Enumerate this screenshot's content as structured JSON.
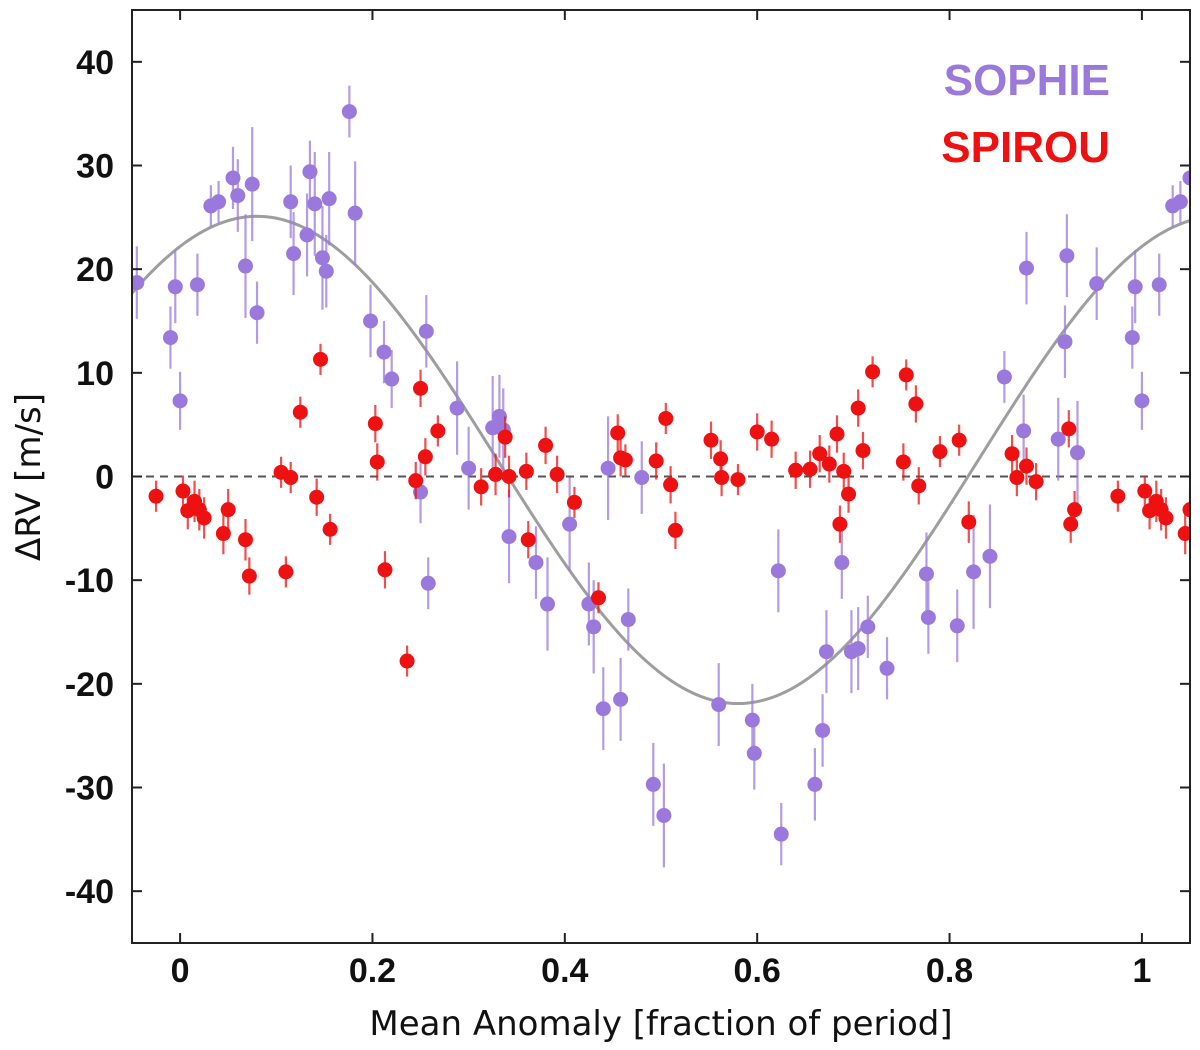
{
  "chart_data": {
    "type": "scatter",
    "title": "",
    "xlabel": "Mean Anomaly [fraction of period]",
    "ylabel": "ΔRV [m/s]",
    "xlim": [
      -0.05,
      1.05
    ],
    "ylim": [
      -45,
      45
    ],
    "xticks": [
      0,
      0.2,
      0.4,
      0.6,
      0.8,
      1
    ],
    "xtick_labels": [
      "0",
      "0.2",
      "0.4",
      "0.6",
      "0.8",
      "1"
    ],
    "yticks": [
      40,
      30,
      20,
      10,
      0,
      -10,
      -20,
      -30,
      -40
    ],
    "ytick_labels": [
      "40",
      "30",
      "20",
      "10",
      "0",
      "-10",
      "-20",
      "-30",
      "-40"
    ],
    "reference_line": {
      "y": 0,
      "style": "dashed"
    },
    "model": {
      "name": "Keplerian fit",
      "type": "sine",
      "offset": 1.6,
      "amplitude": 23.5,
      "phase_of_max": 0.08,
      "color": "#9e9e9e"
    },
    "legend": {
      "position": "top-right"
    },
    "series": [
      {
        "name": "SOPHIE",
        "color": "#9b79dc",
        "points": [
          {
            "x": -0.045,
            "y": 18.7,
            "err": 3.5
          },
          {
            "x": -0.01,
            "y": 13.4,
            "err": 3.0
          },
          {
            "x": -0.005,
            "y": 18.3,
            "err": 3.5
          },
          {
            "x": 0.0,
            "y": 7.3,
            "err": 2.8
          },
          {
            "x": 0.018,
            "y": 18.5,
            "err": 3.0
          },
          {
            "x": 0.032,
            "y": 26.1,
            "err": 2.0
          },
          {
            "x": 0.04,
            "y": 26.5,
            "err": 2.0
          },
          {
            "x": 0.055,
            "y": 28.8,
            "err": 3.0
          },
          {
            "x": 0.06,
            "y": 27.1,
            "err": 3.5
          },
          {
            "x": 0.068,
            "y": 20.3,
            "err": 5.0
          },
          {
            "x": 0.075,
            "y": 28.2,
            "err": 5.5
          },
          {
            "x": 0.08,
            "y": 15.8,
            "err": 3.0
          },
          {
            "x": 0.115,
            "y": 26.5,
            "err": 3.5
          },
          {
            "x": 0.118,
            "y": 21.5,
            "err": 4.0
          },
          {
            "x": 0.132,
            "y": 23.3,
            "err": 4.0
          },
          {
            "x": 0.135,
            "y": 29.4,
            "err": 3.0
          },
          {
            "x": 0.14,
            "y": 26.3,
            "err": 5.0
          },
          {
            "x": 0.148,
            "y": 21.1,
            "err": 5.0
          },
          {
            "x": 0.152,
            "y": 19.8,
            "err": 3.5
          },
          {
            "x": 0.155,
            "y": 26.8,
            "err": 4.5
          },
          {
            "x": 0.176,
            "y": 35.2,
            "err": 2.5
          },
          {
            "x": 0.182,
            "y": 25.4,
            "err": 5.0
          },
          {
            "x": 0.198,
            "y": 15.0,
            "err": 3.5
          },
          {
            "x": 0.212,
            "y": 12.0,
            "err": 3.0
          },
          {
            "x": 0.22,
            "y": 9.4,
            "err": 2.8
          },
          {
            "x": 0.25,
            "y": -1.5,
            "err": 3.0
          },
          {
            "x": 0.256,
            "y": 14.0,
            "err": 3.5
          },
          {
            "x": 0.258,
            "y": -10.3,
            "err": 2.5
          },
          {
            "x": 0.288,
            "y": 6.6,
            "err": 4.5
          },
          {
            "x": 0.3,
            "y": 0.8,
            "err": 4.0
          },
          {
            "x": 0.325,
            "y": 4.7,
            "err": 5.0
          },
          {
            "x": 0.332,
            "y": 5.8,
            "err": 4.0
          },
          {
            "x": 0.336,
            "y": 4.5,
            "err": 4.0
          },
          {
            "x": 0.342,
            "y": -5.8,
            "err": 4.5
          },
          {
            "x": 0.37,
            "y": -8.3,
            "err": 3.5
          },
          {
            "x": 0.382,
            "y": -12.3,
            "err": 4.5
          },
          {
            "x": 0.405,
            "y": -4.6,
            "err": 4.5
          },
          {
            "x": 0.425,
            "y": -12.3,
            "err": 4.0
          },
          {
            "x": 0.43,
            "y": -14.5,
            "err": 4.5
          },
          {
            "x": 0.44,
            "y": -22.4,
            "err": 4.0
          },
          {
            "x": 0.445,
            "y": 0.8,
            "err": 5.0
          },
          {
            "x": 0.458,
            "y": -21.5,
            "err": 4.0
          },
          {
            "x": 0.466,
            "y": -13.8,
            "err": 3.0
          },
          {
            "x": 0.48,
            "y": -0.1,
            "err": 3.5
          },
          {
            "x": 0.492,
            "y": -29.7,
            "err": 4.0
          },
          {
            "x": 0.503,
            "y": -32.7,
            "err": 5.0
          },
          {
            "x": 0.56,
            "y": -22.0,
            "err": 4.0
          },
          {
            "x": 0.595,
            "y": -23.5,
            "err": 3.5
          },
          {
            "x": 0.597,
            "y": -26.7,
            "err": 3.5
          },
          {
            "x": 0.622,
            "y": -9.1,
            "err": 4.0
          },
          {
            "x": 0.625,
            "y": -34.5,
            "err": 3.0
          },
          {
            "x": 0.66,
            "y": -29.7,
            "err": 3.5
          },
          {
            "x": 0.668,
            "y": -24.5,
            "err": 3.5
          },
          {
            "x": 0.672,
            "y": -16.9,
            "err": 4.0
          },
          {
            "x": 0.688,
            "y": -8.3,
            "err": 3.5
          },
          {
            "x": 0.698,
            "y": -16.9,
            "err": 4.0
          },
          {
            "x": 0.705,
            "y": -16.6,
            "err": 4.0
          },
          {
            "x": 0.715,
            "y": -14.5,
            "err": 3.0
          },
          {
            "x": 0.735,
            "y": -18.5,
            "err": 3.0
          },
          {
            "x": 0.776,
            "y": -9.4,
            "err": 4.0
          },
          {
            "x": 0.778,
            "y": -13.6,
            "err": 3.5
          },
          {
            "x": 0.808,
            "y": -14.4,
            "err": 3.5
          },
          {
            "x": 0.825,
            "y": -9.2,
            "err": 5.5
          },
          {
            "x": 0.842,
            "y": -7.7,
            "err": 5.0
          },
          {
            "x": 0.857,
            "y": 9.6,
            "err": 2.5
          },
          {
            "x": 0.877,
            "y": 4.4,
            "err": 3.5
          },
          {
            "x": 0.88,
            "y": 20.1,
            "err": 3.5
          },
          {
            "x": 0.913,
            "y": 3.6,
            "err": 4.0
          },
          {
            "x": 0.92,
            "y": 13.0,
            "err": 3.5
          },
          {
            "x": 0.922,
            "y": 21.3,
            "err": 4.0
          },
          {
            "x": 0.933,
            "y": 2.3,
            "err": 5.0
          },
          {
            "x": 0.953,
            "y": 18.6,
            "err": 3.5
          },
          {
            "x": 0.99,
            "y": 13.4,
            "err": 3.0
          },
          {
            "x": 0.993,
            "y": 18.3,
            "err": 3.5
          },
          {
            "x": 1.0,
            "y": 7.3,
            "err": 2.8
          },
          {
            "x": 1.018,
            "y": 18.5,
            "err": 3.0
          },
          {
            "x": 1.032,
            "y": 26.1,
            "err": 2.0
          },
          {
            "x": 1.04,
            "y": 26.5,
            "err": 2.0
          },
          {
            "x": 1.05,
            "y": 28.8,
            "err": 3.0
          }
        ]
      },
      {
        "name": "SPIROU",
        "color": "#ee1111",
        "points": [
          {
            "x": -0.025,
            "y": -1.9,
            "err": 1.5
          },
          {
            "x": 0.003,
            "y": -1.4,
            "err": 1.5
          },
          {
            "x": 0.008,
            "y": -3.3,
            "err": 1.8
          },
          {
            "x": 0.015,
            "y": -2.4,
            "err": 2.0
          },
          {
            "x": 0.02,
            "y": -3.2,
            "err": 2.0
          },
          {
            "x": 0.025,
            "y": -4.0,
            "err": 2.0
          },
          {
            "x": 0.045,
            "y": -5.5,
            "err": 2.0
          },
          {
            "x": 0.05,
            "y": -3.2,
            "err": 2.0
          },
          {
            "x": 0.068,
            "y": -6.1,
            "err": 2.0
          },
          {
            "x": 0.072,
            "y": -9.6,
            "err": 1.8
          },
          {
            "x": 0.105,
            "y": 0.4,
            "err": 1.5
          },
          {
            "x": 0.11,
            "y": -9.2,
            "err": 1.5
          },
          {
            "x": 0.115,
            "y": -0.1,
            "err": 1.5
          },
          {
            "x": 0.125,
            "y": 6.2,
            "err": 1.5
          },
          {
            "x": 0.142,
            "y": -2.0,
            "err": 1.8
          },
          {
            "x": 0.146,
            "y": 11.3,
            "err": 1.5
          },
          {
            "x": 0.156,
            "y": -5.1,
            "err": 1.5
          },
          {
            "x": 0.203,
            "y": 5.1,
            "err": 1.8
          },
          {
            "x": 0.205,
            "y": 1.4,
            "err": 1.8
          },
          {
            "x": 0.213,
            "y": -9.0,
            "err": 1.8
          },
          {
            "x": 0.236,
            "y": -17.8,
            "err": 1.5
          },
          {
            "x": 0.245,
            "y": -0.4,
            "err": 1.8
          },
          {
            "x": 0.25,
            "y": 8.5,
            "err": 1.8
          },
          {
            "x": 0.255,
            "y": 1.9,
            "err": 1.8
          },
          {
            "x": 0.268,
            "y": 4.4,
            "err": 1.5
          },
          {
            "x": 0.313,
            "y": -1.0,
            "err": 1.8
          },
          {
            "x": 0.328,
            "y": 0.2,
            "err": 2.0
          },
          {
            "x": 0.338,
            "y": 3.8,
            "err": 2.0
          },
          {
            "x": 0.342,
            "y": 0.0,
            "err": 2.0
          },
          {
            "x": 0.36,
            "y": 0.5,
            "err": 1.8
          },
          {
            "x": 0.362,
            "y": -6.1,
            "err": 1.8
          },
          {
            "x": 0.38,
            "y": 3.0,
            "err": 1.8
          },
          {
            "x": 0.392,
            "y": 0.2,
            "err": 1.8
          },
          {
            "x": 0.41,
            "y": -2.5,
            "err": 1.5
          },
          {
            "x": 0.435,
            "y": -11.7,
            "err": 1.5
          },
          {
            "x": 0.455,
            "y": 4.2,
            "err": 1.8
          },
          {
            "x": 0.458,
            "y": 1.8,
            "err": 1.8
          },
          {
            "x": 0.463,
            "y": 1.6,
            "err": 1.5
          },
          {
            "x": 0.495,
            "y": 1.5,
            "err": 1.8
          },
          {
            "x": 0.505,
            "y": 5.6,
            "err": 1.5
          },
          {
            "x": 0.51,
            "y": -0.8,
            "err": 1.8
          },
          {
            "x": 0.515,
            "y": -5.2,
            "err": 1.8
          },
          {
            "x": 0.552,
            "y": 3.5,
            "err": 1.8
          },
          {
            "x": 0.562,
            "y": 1.7,
            "err": 1.8
          },
          {
            "x": 0.563,
            "y": -0.1,
            "err": 1.8
          },
          {
            "x": 0.58,
            "y": -0.3,
            "err": 1.5
          },
          {
            "x": 0.6,
            "y": 4.3,
            "err": 1.8
          },
          {
            "x": 0.615,
            "y": 3.6,
            "err": 1.8
          },
          {
            "x": 0.64,
            "y": 0.6,
            "err": 1.8
          },
          {
            "x": 0.655,
            "y": 0.7,
            "err": 1.8
          },
          {
            "x": 0.665,
            "y": 2.2,
            "err": 1.8
          },
          {
            "x": 0.675,
            "y": 1.2,
            "err": 1.8
          },
          {
            "x": 0.683,
            "y": 4.1,
            "err": 1.8
          },
          {
            "x": 0.686,
            "y": -4.6,
            "err": 1.8
          },
          {
            "x": 0.69,
            "y": 0.5,
            "err": 1.8
          },
          {
            "x": 0.695,
            "y": -1.7,
            "err": 1.8
          },
          {
            "x": 0.705,
            "y": 6.6,
            "err": 1.8
          },
          {
            "x": 0.71,
            "y": 2.5,
            "err": 1.8
          },
          {
            "x": 0.72,
            "y": 10.1,
            "err": 1.5
          },
          {
            "x": 0.752,
            "y": 1.4,
            "err": 1.8
          },
          {
            "x": 0.755,
            "y": 9.8,
            "err": 1.5
          },
          {
            "x": 0.765,
            "y": 7.0,
            "err": 1.8
          },
          {
            "x": 0.768,
            "y": -0.9,
            "err": 1.8
          },
          {
            "x": 0.79,
            "y": 2.4,
            "err": 1.5
          },
          {
            "x": 0.81,
            "y": 3.5,
            "err": 1.5
          },
          {
            "x": 0.82,
            "y": -4.4,
            "err": 2.0
          },
          {
            "x": 0.865,
            "y": 2.2,
            "err": 1.8
          },
          {
            "x": 0.87,
            "y": -0.1,
            "err": 1.8
          },
          {
            "x": 0.88,
            "y": 1.0,
            "err": 1.8
          },
          {
            "x": 0.89,
            "y": -0.5,
            "err": 1.8
          },
          {
            "x": 0.924,
            "y": 4.6,
            "err": 1.8
          },
          {
            "x": 0.926,
            "y": -4.6,
            "err": 1.8
          },
          {
            "x": 0.93,
            "y": -3.2,
            "err": 1.8
          },
          {
            "x": 0.975,
            "y": -1.9,
            "err": 1.5
          },
          {
            "x": 1.003,
            "y": -1.4,
            "err": 1.5
          },
          {
            "x": 1.008,
            "y": -3.3,
            "err": 1.8
          },
          {
            "x": 1.015,
            "y": -2.4,
            "err": 2.0
          },
          {
            "x": 1.02,
            "y": -3.2,
            "err": 2.0
          },
          {
            "x": 1.025,
            "y": -4.0,
            "err": 2.0
          },
          {
            "x": 1.045,
            "y": -5.5,
            "err": 2.0
          },
          {
            "x": 1.05,
            "y": -3.2,
            "err": 2.0
          }
        ]
      }
    ]
  }
}
